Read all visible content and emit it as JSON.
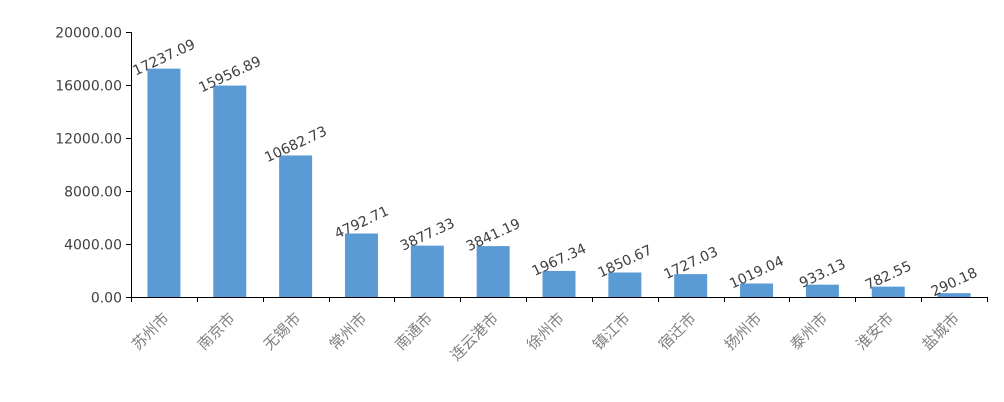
{
  "chart_data": {
    "type": "bar",
    "title": "",
    "xlabel": "",
    "ylabel": "",
    "categories": [
      "苏州市",
      "南京市",
      "无锡市",
      "常州市",
      "南通市",
      "连云港市",
      "徐州市",
      "镇江市",
      "宿迁市",
      "扬州市",
      "泰州市",
      "淮安市",
      "盐城市"
    ],
    "values": [
      17237.09,
      15956.89,
      10682.73,
      4792.71,
      3877.33,
      3841.19,
      1967.34,
      1850.67,
      1727.03,
      1019.04,
      933.13,
      782.55,
      290.18
    ],
    "value_labels": [
      "17237.09",
      "15956.89",
      "10682.73",
      "4792.71",
      "3877.33",
      "3841.19",
      "1967.34",
      "1850.67",
      "1727.03",
      "1019.04",
      "933.13",
      "782.55",
      "290.18"
    ],
    "ylim": [
      0,
      20000
    ],
    "yticks": [
      0,
      4000,
      8000,
      12000,
      16000,
      20000
    ],
    "ytick_labels": [
      "0.00",
      "4000.00",
      "8000.00",
      "12000.00",
      "16000.00",
      "20000.00"
    ],
    "grid": false,
    "legend": "none",
    "bar_color": "#5b9bd5",
    "axis_color": "#000000",
    "text_color": "#404040",
    "category_color": "#7f7f7f"
  }
}
